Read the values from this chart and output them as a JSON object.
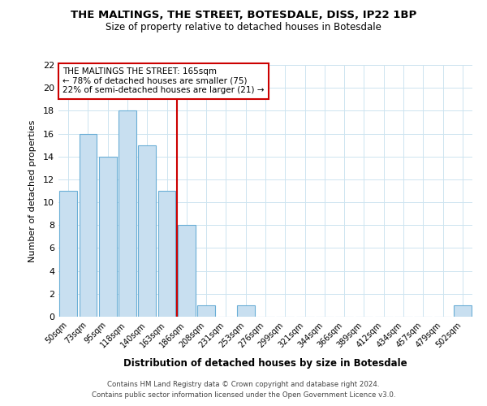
{
  "title": "THE MALTINGS, THE STREET, BOTESDALE, DISS, IP22 1BP",
  "subtitle": "Size of property relative to detached houses in Botesdale",
  "xlabel": "Distribution of detached houses by size in Botesdale",
  "ylabel": "Number of detached properties",
  "bar_labels": [
    "50sqm",
    "73sqm",
    "95sqm",
    "118sqm",
    "140sqm",
    "163sqm",
    "186sqm",
    "208sqm",
    "231sqm",
    "253sqm",
    "276sqm",
    "299sqm",
    "321sqm",
    "344sqm",
    "366sqm",
    "389sqm",
    "412sqm",
    "434sqm",
    "457sqm",
    "479sqm",
    "502sqm"
  ],
  "bar_values": [
    11,
    16,
    14,
    18,
    15,
    11,
    8,
    1,
    0,
    1,
    0,
    0,
    0,
    0,
    0,
    0,
    0,
    0,
    0,
    0,
    1
  ],
  "bar_color": "#c8dff0",
  "bar_edge_color": "#6aaed6",
  "reference_line_x": 5.5,
  "reference_line_color": "#cc0000",
  "annotation_text": "THE MALTINGS THE STREET: 165sqm\n← 78% of detached houses are smaller (75)\n22% of semi-detached houses are larger (21) →",
  "annotation_box_color": "#ffffff",
  "annotation_box_edge_color": "#cc0000",
  "ylim": [
    0,
    22
  ],
  "yticks": [
    0,
    2,
    4,
    6,
    8,
    10,
    12,
    14,
    16,
    18,
    20,
    22
  ],
  "footer_line1": "Contains HM Land Registry data © Crown copyright and database right 2024.",
  "footer_line2": "Contains public sector information licensed under the Open Government Licence v3.0.",
  "background_color": "#ffffff",
  "grid_color": "#cde4f0"
}
